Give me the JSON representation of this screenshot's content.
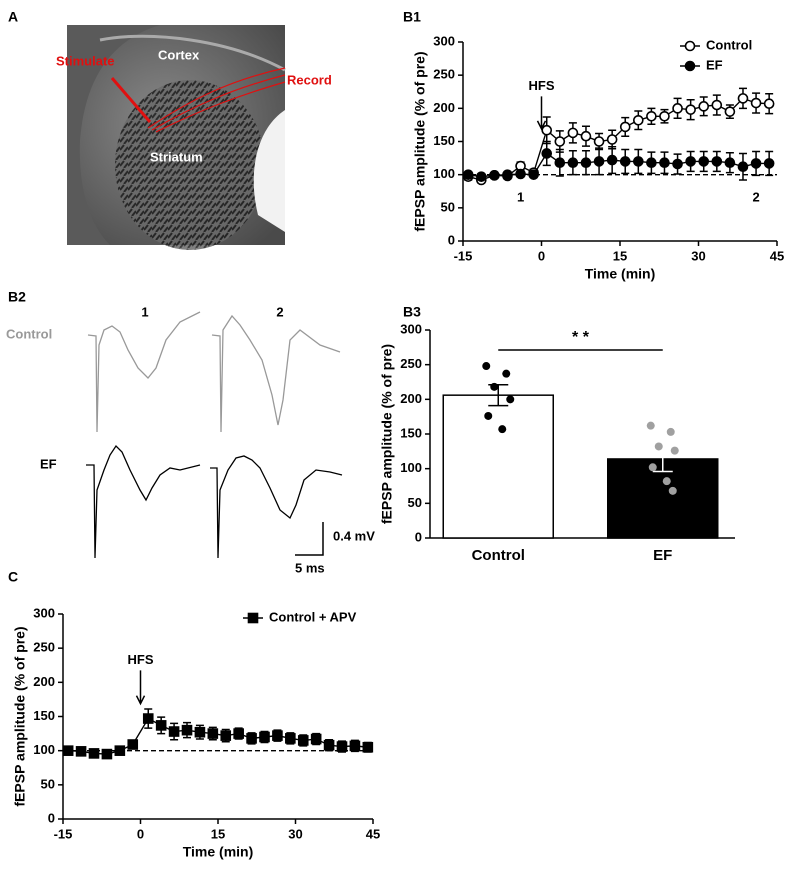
{
  "panels": {
    "A": {
      "label": "A",
      "stimulate": "Stimulate",
      "cortex": "Cortex",
      "record": "Record",
      "striatum": "Striatum"
    },
    "B2": {
      "label": "B2",
      "trace_1": "1",
      "trace_2": "2",
      "control": "Control",
      "ef": "EF",
      "scale_voltage": "0.4 mV",
      "scale_time": "5 ms"
    }
  },
  "chart_data": [
    {
      "type": "line",
      "panel_label": "B1",
      "xlabel": "Time (min)",
      "ylabel": "fEPSP amplitude (% of pre)",
      "x": [
        -14,
        -11.5,
        -9,
        -6.5,
        -4,
        -1.5,
        1,
        3.5,
        6,
        8.5,
        11,
        13.5,
        16,
        18.5,
        21,
        23.5,
        26,
        28.5,
        31,
        33.5,
        36,
        38.5,
        41,
        43.5
      ],
      "xlim": [
        -15,
        45
      ],
      "xticks": [
        -15,
        0,
        15,
        30,
        45
      ],
      "ylim": [
        0,
        300
      ],
      "yticks": [
        0,
        50,
        100,
        150,
        200,
        250,
        300
      ],
      "reference_line": 100,
      "legend": "upper right",
      "annotations": [
        {
          "text": "HFS",
          "x": 0,
          "arrow": true
        },
        {
          "text": "1",
          "x": -4
        },
        {
          "text": "2",
          "x": 41
        }
      ],
      "series": [
        {
          "name": "Control",
          "marker": "open-circle",
          "color": "#000000",
          "values": [
            97,
            92,
            99,
            98,
            113,
            103,
            167,
            150,
            163,
            158,
            150,
            153,
            172,
            182,
            188,
            188,
            200,
            198,
            203,
            205,
            195,
            215,
            208,
            207
          ],
          "errors": [
            5,
            4,
            4,
            4,
            6,
            5,
            20,
            16,
            15,
            15,
            12,
            14,
            14,
            14,
            12,
            10,
            15,
            15,
            14,
            15,
            10,
            15,
            15,
            15
          ]
        },
        {
          "name": "EF",
          "marker": "filled-circle",
          "color": "#000000",
          "values": [
            100,
            97,
            99,
            100,
            101,
            100,
            132,
            118,
            118,
            118,
            120,
            122,
            120,
            120,
            118,
            118,
            116,
            120,
            120,
            120,
            118,
            112,
            117,
            117
          ],
          "errors": [
            4,
            4,
            4,
            3,
            3,
            3,
            18,
            20,
            18,
            18,
            20,
            20,
            18,
            18,
            16,
            16,
            15,
            15,
            15,
            15,
            15,
            20,
            18,
            18
          ]
        }
      ]
    },
    {
      "type": "bar",
      "panel_label": "B3",
      "ylabel": "fEPSP amplitude (% of pre)",
      "categories": [
        "Control",
        "EF"
      ],
      "values": [
        206,
        114
      ],
      "errors": [
        15,
        18
      ],
      "colors": [
        "#ffffff",
        "#000000"
      ],
      "point_colors": [
        "#000000",
        "#a0a0a0"
      ],
      "points": [
        [
          248,
          237,
          218,
          200,
          176,
          157
        ],
        [
          162,
          153,
          132,
          126,
          102,
          82,
          68
        ]
      ],
      "ylim": [
        0,
        300
      ],
      "yticks": [
        0,
        50,
        100,
        150,
        200,
        250,
        300
      ],
      "significance": "* *"
    },
    {
      "type": "line",
      "panel_label": "C",
      "xlabel": "Time (min)",
      "ylabel": "fEPSP amplitude (% of pre)",
      "x": [
        -14,
        -11.5,
        -9,
        -6.5,
        -4,
        -1.5,
        1.5,
        4,
        6.5,
        9,
        11.5,
        14,
        16.5,
        19,
        21.5,
        24,
        26.5,
        29,
        31.5,
        34,
        36.5,
        39,
        41.5,
        44
      ],
      "xlim": [
        -15,
        45
      ],
      "xticks": [
        -15,
        0,
        15,
        30,
        45
      ],
      "ylim": [
        0,
        300
      ],
      "yticks": [
        0,
        50,
        100,
        150,
        200,
        250,
        300
      ],
      "reference_line": 100,
      "legend": "upper left",
      "annotations": [
        {
          "text": "HFS",
          "x": 0,
          "arrow": true
        }
      ],
      "series": [
        {
          "name": "Control + APV",
          "marker": "filled-square",
          "color": "#000000",
          "values": [
            100,
            99,
            96,
            95,
            100,
            109,
            147,
            137,
            128,
            130,
            127,
            125,
            122,
            125,
            118,
            120,
            122,
            118,
            115,
            117,
            108,
            106,
            107,
            105
          ],
          "errors": [
            3,
            3,
            3,
            3,
            3,
            3,
            14,
            12,
            12,
            11,
            10,
            9,
            9,
            8,
            8,
            8,
            8,
            8,
            8,
            8,
            8,
            8,
            8,
            7
          ]
        }
      ]
    }
  ]
}
